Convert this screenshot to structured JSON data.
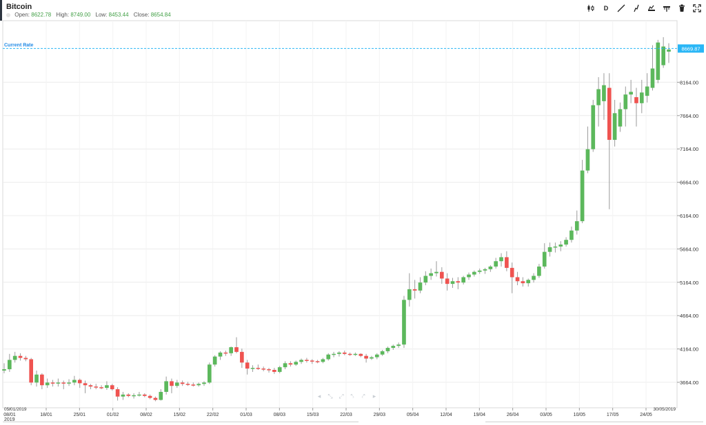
{
  "header": {
    "title": "Bitcoin",
    "ohlc": [
      {
        "label": "Open:",
        "value": "8622.78"
      },
      {
        "label": "High:",
        "value": "8749.00"
      },
      {
        "label": "Low:",
        "value": "8453.44"
      },
      {
        "label": "Close:",
        "value": "8654.84"
      }
    ]
  },
  "toolbar": {
    "items": [
      {
        "name": "candlestick-type-icon",
        "text": ""
      },
      {
        "name": "interval-button",
        "text": "D"
      },
      {
        "name": "draw-line-icon",
        "text": ""
      },
      {
        "name": "indicator-icon",
        "text": ""
      },
      {
        "name": "chart-settings-icon",
        "text": ""
      },
      {
        "name": "compare-icon",
        "text": ""
      },
      {
        "name": "delete-icon",
        "text": ""
      },
      {
        "name": "fullscreen-icon",
        "text": ""
      }
    ]
  },
  "pager": [
    "◂",
    "⤡",
    "⤢",
    "⤣",
    "⤤",
    "▸"
  ],
  "colors": {
    "up": "#5cb85c",
    "down": "#ef5350",
    "wick": "#9a9a9a",
    "grid": "#ececec",
    "current_rate": "#29b6f6"
  },
  "chart_data": {
    "type": "candlestick",
    "title": "Bitcoin",
    "current_rate": {
      "label": "Current Rate",
      "value": 8669.87,
      "value_label": "8669.87"
    },
    "y_ticks": [
      3664,
      4164,
      4664,
      5164,
      5664,
      6164,
      6664,
      7164,
      7664,
      8164
    ],
    "y_tick_labels": [
      "3664.00",
      "4164.00",
      "4664.00",
      "5164.00",
      "5664.00",
      "6164.00",
      "6664.00",
      "7164.00",
      "7664.00",
      "8164.00"
    ],
    "x_tick_labels": [
      "08/01",
      "18/01",
      "25/01",
      "01/02",
      "08/02",
      "15/02",
      "22/02",
      "01/03",
      "08/03",
      "15/03",
      "22/03",
      "29/03",
      "05/04",
      "12/04",
      "19/04",
      "26/04",
      "03/05",
      "10/05",
      "17/05",
      "24/05"
    ],
    "x_tick_year": "2019",
    "range_start_label": "05/01/2019",
    "range_end_label": "30/05/2019",
    "candles": [
      {
        "o": 3840,
        "h": 3950,
        "l": 3800,
        "c": 3860
      },
      {
        "o": 3860,
        "h": 4090,
        "l": 3820,
        "c": 4000
      },
      {
        "o": 4000,
        "h": 4120,
        "l": 3960,
        "c": 4060
      },
      {
        "o": 4060,
        "h": 4100,
        "l": 3990,
        "c": 4030
      },
      {
        "o": 4030,
        "h": 4060,
        "l": 3980,
        "c": 4010
      },
      {
        "o": 4010,
        "h": 4030,
        "l": 3620,
        "c": 3660
      },
      {
        "o": 3660,
        "h": 3840,
        "l": 3600,
        "c": 3780
      },
      {
        "o": 3780,
        "h": 3800,
        "l": 3560,
        "c": 3620
      },
      {
        "o": 3620,
        "h": 3720,
        "l": 3580,
        "c": 3660
      },
      {
        "o": 3660,
        "h": 3700,
        "l": 3600,
        "c": 3650
      },
      {
        "o": 3650,
        "h": 3720,
        "l": 3600,
        "c": 3660
      },
      {
        "o": 3660,
        "h": 3690,
        "l": 3560,
        "c": 3650
      },
      {
        "o": 3650,
        "h": 3710,
        "l": 3610,
        "c": 3660
      },
      {
        "o": 3660,
        "h": 3760,
        "l": 3620,
        "c": 3700
      },
      {
        "o": 3700,
        "h": 3720,
        "l": 3580,
        "c": 3650
      },
      {
        "o": 3650,
        "h": 3690,
        "l": 3500,
        "c": 3620
      },
      {
        "o": 3620,
        "h": 3640,
        "l": 3560,
        "c": 3600
      },
      {
        "o": 3600,
        "h": 3640,
        "l": 3560,
        "c": 3590
      },
      {
        "o": 3590,
        "h": 3620,
        "l": 3560,
        "c": 3580
      },
      {
        "o": 3580,
        "h": 3680,
        "l": 3550,
        "c": 3620
      },
      {
        "o": 3620,
        "h": 3640,
        "l": 3540,
        "c": 3560
      },
      {
        "o": 3560,
        "h": 3590,
        "l": 3390,
        "c": 3450
      },
      {
        "o": 3450,
        "h": 3520,
        "l": 3400,
        "c": 3480
      },
      {
        "o": 3480,
        "h": 3500,
        "l": 3440,
        "c": 3460
      },
      {
        "o": 3460,
        "h": 3500,
        "l": 3420,
        "c": 3470
      },
      {
        "o": 3470,
        "h": 3520,
        "l": 3450,
        "c": 3480
      },
      {
        "o": 3480,
        "h": 3500,
        "l": 3440,
        "c": 3460
      },
      {
        "o": 3460,
        "h": 3480,
        "l": 3410,
        "c": 3430
      },
      {
        "o": 3430,
        "h": 3450,
        "l": 3380,
        "c": 3400
      },
      {
        "o": 3400,
        "h": 3560,
        "l": 3390,
        "c": 3520
      },
      {
        "o": 3520,
        "h": 3750,
        "l": 3480,
        "c": 3680
      },
      {
        "o": 3680,
        "h": 3720,
        "l": 3500,
        "c": 3610
      },
      {
        "o": 3610,
        "h": 3700,
        "l": 3580,
        "c": 3660
      },
      {
        "o": 3660,
        "h": 3690,
        "l": 3610,
        "c": 3640
      },
      {
        "o": 3640,
        "h": 3670,
        "l": 3610,
        "c": 3630
      },
      {
        "o": 3630,
        "h": 3660,
        "l": 3600,
        "c": 3620
      },
      {
        "o": 3620,
        "h": 3660,
        "l": 3600,
        "c": 3640
      },
      {
        "o": 3640,
        "h": 3680,
        "l": 3610,
        "c": 3660
      },
      {
        "o": 3660,
        "h": 3960,
        "l": 3640,
        "c": 3930
      },
      {
        "o": 3930,
        "h": 4070,
        "l": 3900,
        "c": 4050
      },
      {
        "o": 4050,
        "h": 4130,
        "l": 4000,
        "c": 4110
      },
      {
        "o": 4110,
        "h": 4140,
        "l": 4060,
        "c": 4100
      },
      {
        "o": 4100,
        "h": 4200,
        "l": 4060,
        "c": 4190
      },
      {
        "o": 4190,
        "h": 4340,
        "l": 4100,
        "c": 4120
      },
      {
        "o": 4120,
        "h": 4170,
        "l": 3880,
        "c": 3960
      },
      {
        "o": 3960,
        "h": 4000,
        "l": 3780,
        "c": 3870
      },
      {
        "o": 3870,
        "h": 3920,
        "l": 3820,
        "c": 3880
      },
      {
        "o": 3880,
        "h": 3930,
        "l": 3850,
        "c": 3870
      },
      {
        "o": 3870,
        "h": 3900,
        "l": 3830,
        "c": 3860
      },
      {
        "o": 3860,
        "h": 3880,
        "l": 3810,
        "c": 3850
      },
      {
        "o": 3850,
        "h": 3880,
        "l": 3790,
        "c": 3820
      },
      {
        "o": 3820,
        "h": 3910,
        "l": 3800,
        "c": 3890
      },
      {
        "o": 3890,
        "h": 3980,
        "l": 3860,
        "c": 3950
      },
      {
        "o": 3950,
        "h": 3980,
        "l": 3900,
        "c": 3930
      },
      {
        "o": 3930,
        "h": 3990,
        "l": 3910,
        "c": 3970
      },
      {
        "o": 3970,
        "h": 4020,
        "l": 3940,
        "c": 4000
      },
      {
        "o": 4000,
        "h": 4030,
        "l": 3960,
        "c": 3990
      },
      {
        "o": 3990,
        "h": 4010,
        "l": 3940,
        "c": 3980
      },
      {
        "o": 3980,
        "h": 4000,
        "l": 3950,
        "c": 3970
      },
      {
        "o": 3970,
        "h": 4030,
        "l": 3950,
        "c": 4010
      },
      {
        "o": 4010,
        "h": 4100,
        "l": 3990,
        "c": 4080
      },
      {
        "o": 4080,
        "h": 4120,
        "l": 4040,
        "c": 4090
      },
      {
        "o": 4090,
        "h": 4130,
        "l": 4050,
        "c": 4110
      },
      {
        "o": 4110,
        "h": 4140,
        "l": 4070,
        "c": 4090
      },
      {
        "o": 4090,
        "h": 4110,
        "l": 4060,
        "c": 4080
      },
      {
        "o": 4080,
        "h": 4110,
        "l": 4060,
        "c": 4090
      },
      {
        "o": 4090,
        "h": 4100,
        "l": 4040,
        "c": 4060
      },
      {
        "o": 4060,
        "h": 4090,
        "l": 3960,
        "c": 4020
      },
      {
        "o": 4020,
        "h": 4060,
        "l": 4000,
        "c": 4040
      },
      {
        "o": 4040,
        "h": 4100,
        "l": 4010,
        "c": 4080
      },
      {
        "o": 4080,
        "h": 4150,
        "l": 4060,
        "c": 4130
      },
      {
        "o": 4130,
        "h": 4200,
        "l": 4100,
        "c": 4180
      },
      {
        "o": 4180,
        "h": 4230,
        "l": 4150,
        "c": 4210
      },
      {
        "o": 4210,
        "h": 4260,
        "l": 4180,
        "c": 4230
      },
      {
        "o": 4230,
        "h": 4960,
        "l": 4180,
        "c": 4900
      },
      {
        "o": 4900,
        "h": 5300,
        "l": 4800,
        "c": 5060
      },
      {
        "o": 5060,
        "h": 5200,
        "l": 4920,
        "c": 5040
      },
      {
        "o": 5040,
        "h": 5240,
        "l": 5000,
        "c": 5160
      },
      {
        "o": 5160,
        "h": 5330,
        "l": 5120,
        "c": 5260
      },
      {
        "o": 5260,
        "h": 5370,
        "l": 5200,
        "c": 5300
      },
      {
        "o": 5300,
        "h": 5480,
        "l": 5250,
        "c": 5320
      },
      {
        "o": 5320,
        "h": 5390,
        "l": 5140,
        "c": 5220
      },
      {
        "o": 5220,
        "h": 5300,
        "l": 5040,
        "c": 5140
      },
      {
        "o": 5140,
        "h": 5230,
        "l": 5080,
        "c": 5180
      },
      {
        "o": 5180,
        "h": 5240,
        "l": 5060,
        "c": 5160
      },
      {
        "o": 5160,
        "h": 5260,
        "l": 5130,
        "c": 5240
      },
      {
        "o": 5240,
        "h": 5310,
        "l": 5200,
        "c": 5280
      },
      {
        "o": 5280,
        "h": 5340,
        "l": 5250,
        "c": 5320
      },
      {
        "o": 5320,
        "h": 5370,
        "l": 5290,
        "c": 5340
      },
      {
        "o": 5340,
        "h": 5380,
        "l": 5290,
        "c": 5360
      },
      {
        "o": 5360,
        "h": 5420,
        "l": 5320,
        "c": 5400
      },
      {
        "o": 5400,
        "h": 5530,
        "l": 5370,
        "c": 5480
      },
      {
        "o": 5480,
        "h": 5600,
        "l": 5400,
        "c": 5540
      },
      {
        "o": 5540,
        "h": 5630,
        "l": 5330,
        "c": 5380
      },
      {
        "o": 5380,
        "h": 5460,
        "l": 5000,
        "c": 5240
      },
      {
        "o": 5240,
        "h": 5320,
        "l": 5120,
        "c": 5180
      },
      {
        "o": 5180,
        "h": 5240,
        "l": 5100,
        "c": 5150
      },
      {
        "o": 5150,
        "h": 5220,
        "l": 5100,
        "c": 5200
      },
      {
        "o": 5200,
        "h": 5300,
        "l": 5160,
        "c": 5260
      },
      {
        "o": 5260,
        "h": 5440,
        "l": 5230,
        "c": 5400
      },
      {
        "o": 5400,
        "h": 5750,
        "l": 5370,
        "c": 5620
      },
      {
        "o": 5620,
        "h": 5760,
        "l": 5550,
        "c": 5690
      },
      {
        "o": 5690,
        "h": 5760,
        "l": 5610,
        "c": 5700
      },
      {
        "o": 5700,
        "h": 5780,
        "l": 5630,
        "c": 5730
      },
      {
        "o": 5730,
        "h": 5840,
        "l": 5700,
        "c": 5800
      },
      {
        "o": 5800,
        "h": 6000,
        "l": 5760,
        "c": 5940
      },
      {
        "o": 5940,
        "h": 6240,
        "l": 5880,
        "c": 6080
      },
      {
        "o": 6080,
        "h": 7000,
        "l": 6050,
        "c": 6840
      },
      {
        "o": 6840,
        "h": 7500,
        "l": 6800,
        "c": 7160
      },
      {
        "o": 7160,
        "h": 7900,
        "l": 7120,
        "c": 7820
      },
      {
        "o": 7820,
        "h": 8240,
        "l": 7500,
        "c": 8060
      },
      {
        "o": 7880,
        "h": 8300,
        "l": 7600,
        "c": 8120
      },
      {
        "o": 8080,
        "h": 8300,
        "l": 6260,
        "c": 7300
      },
      {
        "o": 7300,
        "h": 7900,
        "l": 7200,
        "c": 7700
      },
      {
        "o": 7500,
        "h": 7860,
        "l": 7420,
        "c": 7760
      },
      {
        "o": 7760,
        "h": 8100,
        "l": 7500,
        "c": 7980
      },
      {
        "o": 7980,
        "h": 8200,
        "l": 7850,
        "c": 8020
      },
      {
        "o": 7940,
        "h": 8080,
        "l": 7500,
        "c": 7850
      },
      {
        "o": 7850,
        "h": 8200,
        "l": 7700,
        "c": 8010
      },
      {
        "o": 7960,
        "h": 8300,
        "l": 7860,
        "c": 8100
      },
      {
        "o": 8080,
        "h": 8720,
        "l": 8040,
        "c": 8370
      },
      {
        "o": 8200,
        "h": 8800,
        "l": 8150,
        "c": 8760
      },
      {
        "o": 8420,
        "h": 8840,
        "l": 8380,
        "c": 8700
      },
      {
        "o": 8622.78,
        "h": 8749,
        "l": 8453.44,
        "c": 8654.84
      }
    ]
  }
}
